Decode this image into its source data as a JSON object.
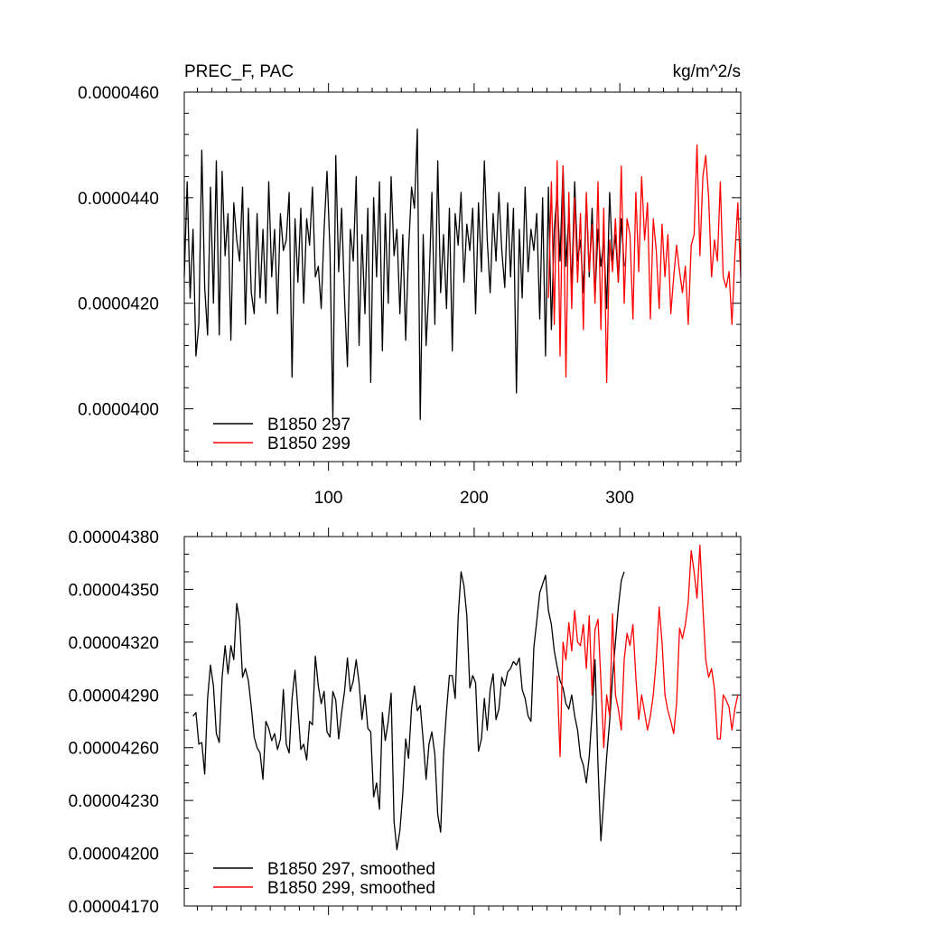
{
  "chart_data": [
    {
      "type": "line",
      "title_left": "PREC_F, PAC",
      "title_right": "kg/m^2/s",
      "xlim": [
        1,
        383
      ],
      "ylim": [
        3.9e-05,
        4.6e-05
      ],
      "x_ticks": [
        100,
        200,
        300
      ],
      "x_tick_labels": [
        "100",
        "200",
        "300"
      ],
      "y_ticks": [
        4e-05,
        4.2e-05,
        4.4e-05,
        4.6e-05
      ],
      "y_tick_labels": [
        "0.0000400",
        "0.0000420",
        "0.0000440",
        "0.0000460"
      ],
      "legend_position": "bottom-left",
      "series": [
        {
          "name": "B1850 297",
          "color": "#000000",
          "x": [
            1,
            3,
            5,
            7,
            9,
            11,
            13,
            15,
            17,
            19,
            21,
            23,
            25,
            27,
            29,
            31,
            33,
            35,
            37,
            39,
            41,
            43,
            45,
            47,
            49,
            51,
            53,
            55,
            57,
            59,
            61,
            63,
            65,
            67,
            69,
            71,
            73,
            75,
            77,
            79,
            81,
            83,
            85,
            87,
            89,
            91,
            93,
            95,
            97,
            99,
            101,
            103,
            105,
            107,
            109,
            111,
            113,
            115,
            117,
            119,
            121,
            123,
            125,
            127,
            129,
            131,
            133,
            135,
            137,
            139,
            141,
            143,
            145,
            147,
            149,
            151,
            153,
            155,
            157,
            159,
            161,
            163,
            165,
            167,
            169,
            171,
            173,
            175,
            177,
            179,
            181,
            183,
            185,
            187,
            189,
            191,
            193,
            195,
            197,
            199,
            201,
            203,
            205,
            207,
            209,
            211,
            213,
            215,
            217,
            219,
            221,
            223,
            225,
            227,
            229,
            231,
            233,
            235,
            237,
            239,
            241,
            243,
            245,
            247,
            249,
            251,
            253,
            255,
            257,
            259,
            261,
            263,
            265,
            267,
            269,
            271,
            273,
            275,
            277,
            279,
            281,
            283,
            285,
            287,
            289,
            291,
            293,
            295,
            297,
            299,
            301,
            303
          ],
          "values": [
            4.25e-05,
            4.43e-05,
            4.21e-05,
            4.34e-05,
            4.1e-05,
            4.16e-05,
            4.49e-05,
            4.23e-05,
            4.14e-05,
            4.42e-05,
            4.2e-05,
            4.47e-05,
            4.14e-05,
            4.45e-05,
            4.29e-05,
            4.37e-05,
            4.13e-05,
            4.39e-05,
            4.32e-05,
            4.28e-05,
            4.42e-05,
            4.16e-05,
            4.38e-05,
            4.22e-05,
            4.18e-05,
            4.37e-05,
            4.21e-05,
            4.34e-05,
            4.2e-05,
            4.43e-05,
            4.25e-05,
            4.34e-05,
            4.18e-05,
            4.37e-05,
            4.3e-05,
            4.32e-05,
            4.41e-05,
            4.06e-05,
            4.36e-05,
            4.24e-05,
            4.38e-05,
            4.2e-05,
            4.36e-05,
            4.31e-05,
            4.42e-05,
            4.25e-05,
            4.27e-05,
            4.19e-05,
            4.34e-05,
            4.45e-05,
            4.3e-05,
            3.98e-05,
            4.48e-05,
            4.26e-05,
            4.38e-05,
            4.21e-05,
            4.08e-05,
            4.34e-05,
            4.28e-05,
            4.44e-05,
            4.12e-05,
            4.33e-05,
            4.18e-05,
            4.38e-05,
            4.05e-05,
            4.4e-05,
            4.25e-05,
            4.43e-05,
            4.11e-05,
            4.37e-05,
            4.2e-05,
            4.44e-05,
            4.29e-05,
            4.34e-05,
            4.18e-05,
            4.33e-05,
            4.13e-05,
            4.3e-05,
            4.42e-05,
            4.38e-05,
            4.53e-05,
            3.98e-05,
            4.33e-05,
            4.12e-05,
            4.23e-05,
            4.41e-05,
            4.16e-05,
            4.47e-05,
            4.22e-05,
            4.33e-05,
            4.19e-05,
            4.38e-05,
            4.11e-05,
            4.37e-05,
            4.31e-05,
            4.41e-05,
            4.24e-05,
            4.35e-05,
            4.3e-05,
            4.38e-05,
            4.18e-05,
            4.39e-05,
            4.26e-05,
            4.47e-05,
            4.32e-05,
            4.22e-05,
            4.37e-05,
            4.28e-05,
            4.41e-05,
            4.3e-05,
            4.23e-05,
            4.39e-05,
            4.25e-05,
            4.38e-05,
            4.03e-05,
            4.34e-05,
            4.21e-05,
            4.42e-05,
            4.26e-05,
            4.34e-05,
            4.3e-05,
            4.37e-05,
            4.17e-05,
            4.4e-05,
            4.1e-05,
            4.42e-05,
            4.15e-05,
            4.34e-05,
            4.41e-05,
            4.28e-05,
            4.46e-05,
            4.27e-05,
            4.37e-05,
            4.23e-05,
            4.43e-05,
            4.28e-05,
            4.32e-05,
            4.22e-05,
            4.4e-05,
            4.25e-05,
            4.38e-05,
            4.21e-05,
            4.34e-05,
            4.27e-05,
            4.32e-05,
            4.19e-05,
            4.41e-05,
            4.28e-05,
            4.33e-05,
            4.24e-05,
            4.36e-05,
            4.27e-05
          ]
        },
        {
          "name": "B1850 299",
          "color": "#ff0000",
          "x": [
            251,
            253,
            255,
            257,
            259,
            261,
            263,
            265,
            267,
            269,
            271,
            273,
            275,
            277,
            279,
            281,
            283,
            285,
            287,
            289,
            291,
            293,
            295,
            297,
            299,
            301,
            303,
            305,
            307,
            309,
            311,
            313,
            315,
            317,
            319,
            321,
            323,
            325,
            327,
            329,
            331,
            333,
            335,
            337,
            339,
            341,
            343,
            345,
            347,
            349,
            351,
            353,
            355,
            357,
            359,
            361,
            363,
            365,
            367,
            369,
            371,
            373,
            375,
            377,
            379,
            381,
            383
          ],
          "values": [
            4.21e-05,
            4.43e-05,
            4.16e-05,
            4.47e-05,
            4.1e-05,
            4.46e-05,
            4.06e-05,
            4.41e-05,
            4.19e-05,
            4.4e-05,
            4.24e-05,
            4.37e-05,
            4.15e-05,
            4.41e-05,
            4.26e-05,
            4.35e-05,
            4.2e-05,
            4.43e-05,
            4.15e-05,
            4.38e-05,
            4.05e-05,
            4.32e-05,
            4.26e-05,
            4.36e-05,
            4.24e-05,
            4.46e-05,
            4.2e-05,
            4.36e-05,
            4.33e-05,
            4.17e-05,
            4.41e-05,
            4.26e-05,
            4.44e-05,
            4.32e-05,
            4.39e-05,
            4.17e-05,
            4.36e-05,
            4.3e-05,
            4.19e-05,
            4.35e-05,
            4.25e-05,
            4.33e-05,
            4.18e-05,
            4.25e-05,
            4.31e-05,
            4.26e-05,
            4.22e-05,
            4.27e-05,
            4.16e-05,
            4.31e-05,
            4.33e-05,
            4.5e-05,
            4.29e-05,
            4.44e-05,
            4.48e-05,
            4.4e-05,
            4.25e-05,
            4.32e-05,
            4.28e-05,
            4.43e-05,
            4.25e-05,
            4.23e-05,
            4.26e-05,
            4.16e-05,
            4.29e-05,
            4.39e-05,
            4.25e-05
          ]
        }
      ]
    },
    {
      "type": "line",
      "xlim": [
        1,
        383
      ],
      "ylim": [
        4.17e-05,
        4.38e-05
      ],
      "x_ticks": [
        100,
        200,
        300
      ],
      "y_ticks": [
        4.17e-05,
        4.2e-05,
        4.23e-05,
        4.26e-05,
        4.29e-05,
        4.32e-05,
        4.35e-05,
        4.38e-05
      ],
      "y_tick_labels": [
        "0.00004170",
        "0.00004200",
        "0.00004230",
        "0.00004260",
        "0.00004290",
        "0.00004320",
        "0.00004350",
        "0.00004380"
      ],
      "legend_position": "bottom-left",
      "series": [
        {
          "name": "B1850 297, smoothed",
          "color": "#000000",
          "x": [
            7,
            9,
            11,
            13,
            15,
            17,
            19,
            21,
            23,
            25,
            27,
            29,
            31,
            33,
            35,
            37,
            39,
            41,
            43,
            45,
            47,
            49,
            51,
            53,
            55,
            57,
            59,
            61,
            63,
            65,
            67,
            69,
            71,
            73,
            75,
            77,
            79,
            81,
            83,
            85,
            87,
            89,
            91,
            93,
            95,
            97,
            99,
            101,
            103,
            105,
            107,
            109,
            111,
            113,
            115,
            117,
            119,
            121,
            123,
            125,
            127,
            129,
            131,
            133,
            135,
            137,
            139,
            141,
            143,
            145,
            147,
            149,
            151,
            153,
            155,
            157,
            159,
            161,
            163,
            165,
            167,
            169,
            171,
            173,
            175,
            177,
            179,
            181,
            183,
            185,
            187,
            189,
            191,
            193,
            195,
            197,
            199,
            201,
            203,
            205,
            207,
            209,
            211,
            213,
            215,
            217,
            219,
            221,
            223,
            225,
            227,
            229,
            231,
            233,
            235,
            237,
            239,
            241,
            243,
            245,
            247,
            249,
            251,
            253,
            255,
            257,
            259,
            261,
            263,
            265,
            267,
            269,
            271,
            273,
            275,
            277,
            279,
            281,
            283,
            285,
            287,
            289,
            291,
            293,
            295,
            297,
            299,
            301,
            303
          ],
          "values": [
            4.278e-05,
            4.28e-05,
            4.262e-05,
            4.263e-05,
            4.245e-05,
            4.288e-05,
            4.307e-05,
            4.295e-05,
            4.268e-05,
            4.263e-05,
            4.3e-05,
            4.318e-05,
            4.302e-05,
            4.318e-05,
            4.31e-05,
            4.342e-05,
            4.332e-05,
            4.3e-05,
            4.305e-05,
            4.298e-05,
            4.283e-05,
            4.266e-05,
            4.26e-05,
            4.257e-05,
            4.242e-05,
            4.275e-05,
            4.271e-05,
            4.264e-05,
            4.268e-05,
            4.259e-05,
            4.265e-05,
            4.293e-05,
            4.262e-05,
            4.257e-05,
            4.288e-05,
            4.304e-05,
            4.282e-05,
            4.259e-05,
            4.262e-05,
            4.253e-05,
            4.275e-05,
            4.273e-05,
            4.312e-05,
            4.295e-05,
            4.285e-05,
            4.292e-05,
            4.269e-05,
            4.266e-05,
            4.292e-05,
            4.287e-05,
            4.265e-05,
            4.28e-05,
            4.292e-05,
            4.311e-05,
            4.292e-05,
            4.298e-05,
            4.31e-05,
            4.297e-05,
            4.276e-05,
            4.29e-05,
            4.271e-05,
            4.269e-05,
            4.232e-05,
            4.24e-05,
            4.225e-05,
            4.28e-05,
            4.264e-05,
            4.275e-05,
            4.291e-05,
            4.218e-05,
            4.202e-05,
            4.213e-05,
            4.234e-05,
            4.265e-05,
            4.254e-05,
            4.283e-05,
            4.295e-05,
            4.281e-05,
            4.284e-05,
            4.264e-05,
            4.242e-05,
            4.262e-05,
            4.269e-05,
            4.256e-05,
            4.222e-05,
            4.212e-05,
            4.256e-05,
            4.281e-05,
            4.301e-05,
            4.301e-05,
            4.288e-05,
            4.334e-05,
            4.36e-05,
            4.352e-05,
            4.335e-05,
            4.294e-05,
            4.301e-05,
            4.297e-05,
            4.258e-05,
            4.265e-05,
            4.288e-05,
            4.27e-05,
            4.293e-05,
            4.302e-05,
            4.276e-05,
            4.282e-05,
            4.3e-05,
            4.295e-05,
            4.303e-05,
            4.305e-05,
            4.309e-05,
            4.307e-05,
            4.311e-05,
            4.293e-05,
            4.288e-05,
            4.278e-05,
            4.275e-05,
            4.317e-05,
            4.332e-05,
            4.348e-05,
            4.353e-05,
            4.358e-05,
            4.338e-05,
            4.33e-05,
            4.315e-05,
            4.306e-05,
            4.298e-05,
            4.294e-05,
            4.285e-05,
            4.282e-05,
            4.29e-05,
            4.278e-05,
            4.27e-05,
            4.255e-05,
            4.25e-05,
            4.24e-05,
            4.255e-05,
            4.28e-05,
            4.31e-05,
            4.25e-05,
            4.207e-05,
            4.23e-05,
            4.255e-05,
            4.275e-05,
            4.3e-05,
            4.32e-05,
            4.34e-05,
            4.355e-05,
            4.36e-05
          ]
        },
        {
          "name": "B1850 299, smoothed",
          "color": "#ff0000",
          "x": [
            257,
            259,
            261,
            263,
            265,
            267,
            269,
            271,
            273,
            275,
            277,
            279,
            281,
            283,
            285,
            287,
            289,
            291,
            293,
            295,
            297,
            299,
            301,
            303,
            305,
            307,
            309,
            311,
            313,
            315,
            317,
            319,
            321,
            323,
            325,
            327,
            329,
            331,
            333,
            335,
            337,
            339,
            341,
            343,
            345,
            347,
            349,
            351,
            353,
            355,
            357,
            359,
            361,
            363,
            365,
            367,
            369,
            371,
            373,
            375,
            377,
            379,
            381
          ],
          "values": [
            4.301e-05,
            4.255e-05,
            4.32e-05,
            4.31e-05,
            4.331e-05,
            4.315e-05,
            4.338e-05,
            4.32e-05,
            4.318e-05,
            4.33e-05,
            4.305e-05,
            4.335e-05,
            4.29e-05,
            4.327e-05,
            4.333e-05,
            4.298e-05,
            4.26e-05,
            4.29e-05,
            4.278e-05,
            4.336e-05,
            4.29e-05,
            4.282e-05,
            4.27e-05,
            4.31e-05,
            4.325e-05,
            4.318e-05,
            4.33e-05,
            4.3e-05,
            4.276e-05,
            4.29e-05,
            4.28e-05,
            4.27e-05,
            4.278e-05,
            4.29e-05,
            4.31e-05,
            4.34e-05,
            4.32e-05,
            4.29e-05,
            4.281e-05,
            4.275e-05,
            4.268e-05,
            4.285e-05,
            4.328e-05,
            4.322e-05,
            4.33e-05,
            4.343e-05,
            4.372e-05,
            4.36e-05,
            4.345e-05,
            4.375e-05,
            4.34e-05,
            4.31e-05,
            4.3e-05,
            4.305e-05,
            4.293e-05,
            4.265e-05,
            4.265e-05,
            4.29e-05,
            4.287e-05,
            4.283e-05,
            4.27e-05,
            4.282e-05,
            4.29e-05
          ]
        }
      ]
    }
  ]
}
